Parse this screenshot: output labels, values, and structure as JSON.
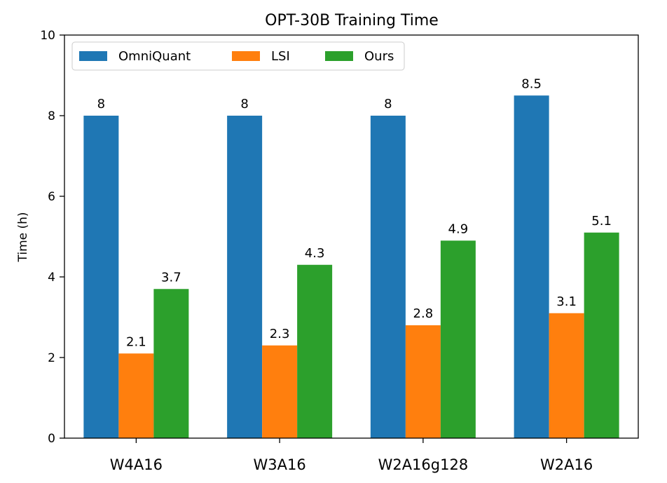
{
  "chart_data": {
    "type": "bar",
    "title": "OPT-30B Training Time",
    "xlabel": "",
    "ylabel": "Time (h)",
    "ylim": [
      0,
      10
    ],
    "yticks": [
      0,
      2,
      4,
      6,
      8,
      10
    ],
    "categories": [
      "W4A16",
      "W3A16",
      "W2A16g128",
      "W2A16"
    ],
    "series": [
      {
        "name": "OmniQuant",
        "color": "#1f77b4",
        "values": [
          8,
          8,
          8,
          8.5
        ]
      },
      {
        "name": "LSI",
        "color": "#ff7f0e",
        "values": [
          2.1,
          2.3,
          2.8,
          3.1
        ]
      },
      {
        "name": "Ours",
        "color": "#2ca02c",
        "values": [
          3.7,
          4.3,
          4.9,
          5.1
        ]
      }
    ],
    "legend_position": "top-left",
    "grid": false
  }
}
